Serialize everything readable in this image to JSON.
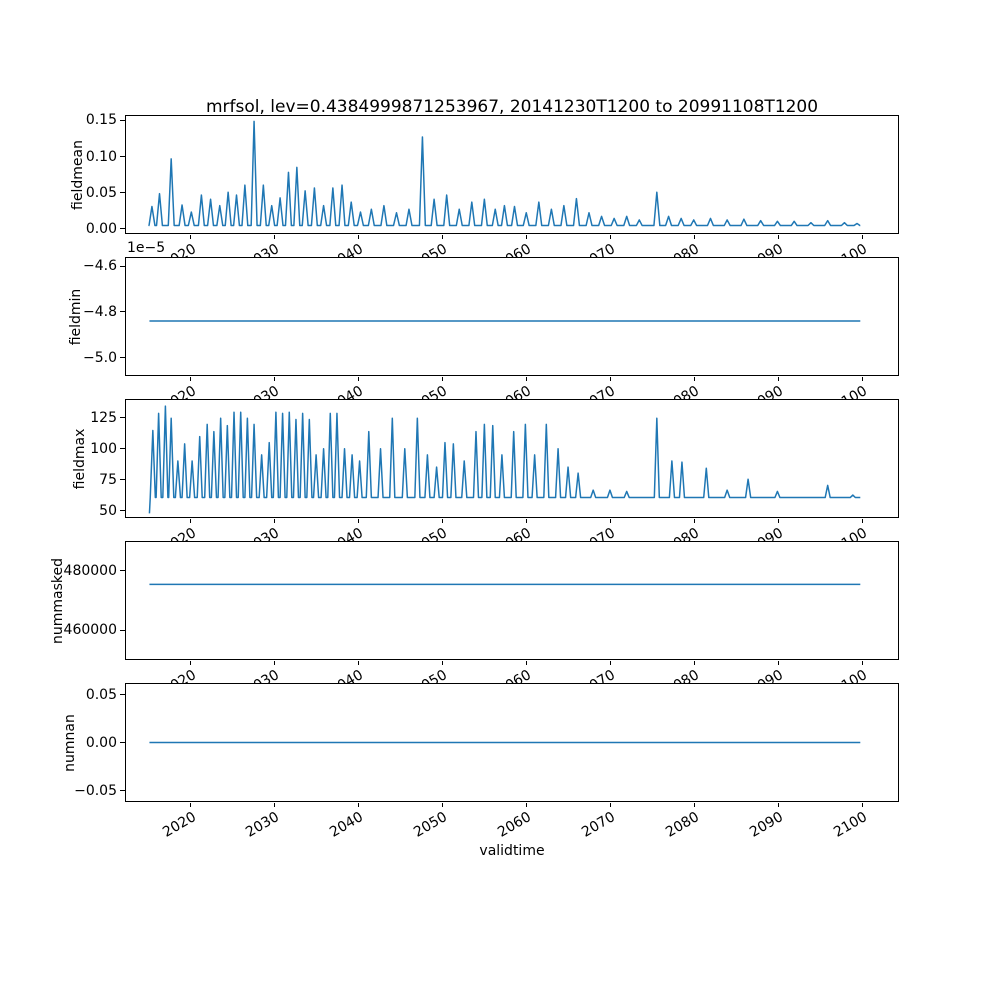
{
  "title": "mrfsol, lev=0.4384999871253967, 20141230T1200 to 20991108T1200",
  "xlabel": "validtime",
  "line_color": "#1f77b4",
  "x_axis": {
    "lim": [
      2012.2,
      2104.4
    ],
    "ticks": [
      2020,
      2030,
      2040,
      2050,
      2060,
      2070,
      2080,
      2090,
      2100
    ],
    "tick_labels": [
      "2020",
      "2030",
      "2040",
      "2050",
      "2060",
      "2070",
      "2080",
      "2090",
      "2100"
    ]
  },
  "chart_data": [
    {
      "type": "line",
      "name": "fieldmean",
      "ylabel": "fieldmean",
      "xlabel": "validtime",
      "ylim": [
        -0.0075,
        0.1575
      ],
      "yticks": [
        0.0,
        0.05,
        0.1,
        0.15
      ],
      "ytick_labels": [
        "0.00",
        "0.05",
        "0.10",
        "0.15"
      ],
      "series": {
        "mode": "spikes",
        "baseline": 0.003,
        "spike_width": 0.35,
        "x_start": 2015.0,
        "x_end": 2099.9,
        "peaks": [
          [
            2015.3,
            0.03
          ],
          [
            2016.2,
            0.048
          ],
          [
            2017.6,
            0.097
          ],
          [
            2018.9,
            0.032
          ],
          [
            2020.0,
            0.022
          ],
          [
            2021.2,
            0.046
          ],
          [
            2022.3,
            0.04
          ],
          [
            2023.4,
            0.031
          ],
          [
            2024.4,
            0.05
          ],
          [
            2025.4,
            0.046
          ],
          [
            2026.4,
            0.06
          ],
          [
            2027.5,
            0.15
          ],
          [
            2028.6,
            0.06
          ],
          [
            2029.6,
            0.031
          ],
          [
            2030.6,
            0.042
          ],
          [
            2031.6,
            0.078
          ],
          [
            2032.6,
            0.085
          ],
          [
            2033.6,
            0.052
          ],
          [
            2034.7,
            0.056
          ],
          [
            2035.8,
            0.031
          ],
          [
            2036.9,
            0.056
          ],
          [
            2038.0,
            0.06
          ],
          [
            2039.1,
            0.036
          ],
          [
            2040.2,
            0.022
          ],
          [
            2041.5,
            0.026
          ],
          [
            2043.0,
            0.031
          ],
          [
            2044.5,
            0.021
          ],
          [
            2046.0,
            0.026
          ],
          [
            2047.6,
            0.128
          ],
          [
            2049.0,
            0.04
          ],
          [
            2050.5,
            0.046
          ],
          [
            2052.0,
            0.026
          ],
          [
            2053.5,
            0.036
          ],
          [
            2055.0,
            0.04
          ],
          [
            2056.3,
            0.026
          ],
          [
            2057.4,
            0.031
          ],
          [
            2058.6,
            0.03
          ],
          [
            2060.0,
            0.021
          ],
          [
            2061.5,
            0.036
          ],
          [
            2063.0,
            0.026
          ],
          [
            2064.5,
            0.031
          ],
          [
            2066.0,
            0.041
          ],
          [
            2067.5,
            0.021
          ],
          [
            2069.0,
            0.016
          ],
          [
            2070.5,
            0.013
          ],
          [
            2072.0,
            0.016
          ],
          [
            2073.5,
            0.011
          ],
          [
            2075.6,
            0.05
          ],
          [
            2077.0,
            0.016
          ],
          [
            2078.5,
            0.013
          ],
          [
            2080.0,
            0.011
          ],
          [
            2082.0,
            0.013
          ],
          [
            2084.0,
            0.011
          ],
          [
            2086.0,
            0.012
          ],
          [
            2088.0,
            0.01
          ],
          [
            2090.0,
            0.009
          ],
          [
            2092.0,
            0.009
          ],
          [
            2094.0,
            0.007
          ],
          [
            2096.0,
            0.01
          ],
          [
            2098.0,
            0.007
          ],
          [
            2099.5,
            0.006
          ]
        ]
      }
    },
    {
      "type": "line",
      "name": "fieldmin",
      "ylabel": "fieldmin",
      "offset_text": "1e−5",
      "ylim": [
        -5.08e-05,
        -4.56e-05
      ],
      "yticks": [
        -4.6e-05,
        -4.8e-05,
        -5e-05
      ],
      "ytick_labels": [
        "−4.6",
        "−4.8",
        "−5.0"
      ],
      "series": {
        "mode": "constant",
        "value": -4.84e-05,
        "x_start": 2015.0,
        "x_end": 2099.9
      }
    },
    {
      "type": "line",
      "name": "fieldmax",
      "ylabel": "fieldmax",
      "ylim": [
        44,
        140
      ],
      "yticks": [
        50,
        75,
        100,
        125
      ],
      "ytick_labels": [
        "50",
        "75",
        "100",
        "125"
      ],
      "series": {
        "mode": "spikes",
        "baseline": 60,
        "spike_width": 0.3,
        "x_start": 2015.0,
        "x_end": 2099.9,
        "prefix": [
          [
            2015.0,
            47
          ]
        ],
        "peaks": [
          [
            2015.4,
            115
          ],
          [
            2016.1,
            129
          ],
          [
            2016.9,
            135
          ],
          [
            2017.6,
            125
          ],
          [
            2018.4,
            90
          ],
          [
            2019.2,
            104
          ],
          [
            2020.1,
            90
          ],
          [
            2021.0,
            110
          ],
          [
            2021.9,
            120
          ],
          [
            2022.7,
            114
          ],
          [
            2023.5,
            125
          ],
          [
            2024.3,
            119
          ],
          [
            2025.1,
            130
          ],
          [
            2025.9,
            130
          ],
          [
            2026.7,
            125
          ],
          [
            2027.5,
            120
          ],
          [
            2028.4,
            95
          ],
          [
            2029.3,
            105
          ],
          [
            2030.1,
            130
          ],
          [
            2030.9,
            129
          ],
          [
            2031.7,
            130
          ],
          [
            2032.5,
            124
          ],
          [
            2033.3,
            129
          ],
          [
            2034.1,
            124
          ],
          [
            2034.9,
            95
          ],
          [
            2035.8,
            100
          ],
          [
            2036.6,
            129
          ],
          [
            2037.4,
            129
          ],
          [
            2038.3,
            100
          ],
          [
            2039.2,
            95
          ],
          [
            2040.1,
            90
          ],
          [
            2041.2,
            114
          ],
          [
            2042.6,
            100
          ],
          [
            2044.0,
            125
          ],
          [
            2045.5,
            100
          ],
          [
            2047.0,
            125
          ],
          [
            2048.2,
            95
          ],
          [
            2049.3,
            85
          ],
          [
            2050.3,
            105
          ],
          [
            2051.3,
            104
          ],
          [
            2052.6,
            90
          ],
          [
            2054.0,
            114
          ],
          [
            2055.0,
            120
          ],
          [
            2056.0,
            119
          ],
          [
            2057.1,
            95
          ],
          [
            2058.5,
            114
          ],
          [
            2059.9,
            120
          ],
          [
            2061.0,
            95
          ],
          [
            2062.4,
            120
          ],
          [
            2063.8,
            100
          ],
          [
            2065.0,
            85
          ],
          [
            2066.2,
            80
          ],
          [
            2068.0,
            66
          ],
          [
            2070.0,
            66
          ],
          [
            2072.0,
            65
          ],
          [
            2075.6,
            125
          ],
          [
            2077.4,
            90
          ],
          [
            2078.6,
            89
          ],
          [
            2081.5,
            84
          ],
          [
            2084.0,
            66
          ],
          [
            2086.5,
            75
          ],
          [
            2090.0,
            65
          ],
          [
            2096.0,
            70
          ],
          [
            2099.0,
            62
          ]
        ]
      }
    },
    {
      "type": "line",
      "name": "nummasked",
      "ylabel": "nummasked",
      "ylim": [
        450000,
        490000
      ],
      "yticks": [
        460000,
        480000
      ],
      "ytick_labels": [
        "460000",
        "480000"
      ],
      "series": {
        "mode": "constant",
        "value": 475500,
        "x_start": 2015.0,
        "x_end": 2099.9
      }
    },
    {
      "type": "line",
      "name": "numnan",
      "ylabel": "numnan",
      "ylim": [
        -0.062,
        0.062
      ],
      "yticks": [
        -0.05,
        0.0,
        0.05
      ],
      "ytick_labels": [
        "−0.05",
        "0.00",
        "0.05"
      ],
      "series": {
        "mode": "constant",
        "value": 0.0,
        "x_start": 2015.0,
        "x_end": 2099.9
      }
    }
  ]
}
